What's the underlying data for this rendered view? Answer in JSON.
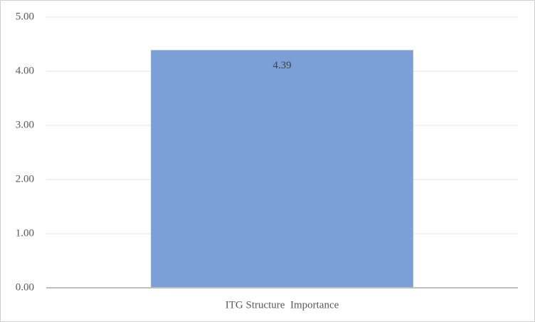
{
  "chart_data": {
    "type": "bar",
    "categories": [
      "ITG Structure  Importance"
    ],
    "values": [
      4.39
    ],
    "color": "#7b9fd6",
    "ylim": [
      0,
      5
    ],
    "yticks": [
      {
        "value": 0,
        "label": "0.00"
      },
      {
        "value": 1,
        "label": "1.00"
      },
      {
        "value": 2,
        "label": "2.00"
      },
      {
        "value": 3,
        "label": "3.00"
      },
      {
        "value": 4,
        "label": "4.00"
      },
      {
        "value": 5,
        "label": "5.00"
      }
    ],
    "grid": true
  }
}
